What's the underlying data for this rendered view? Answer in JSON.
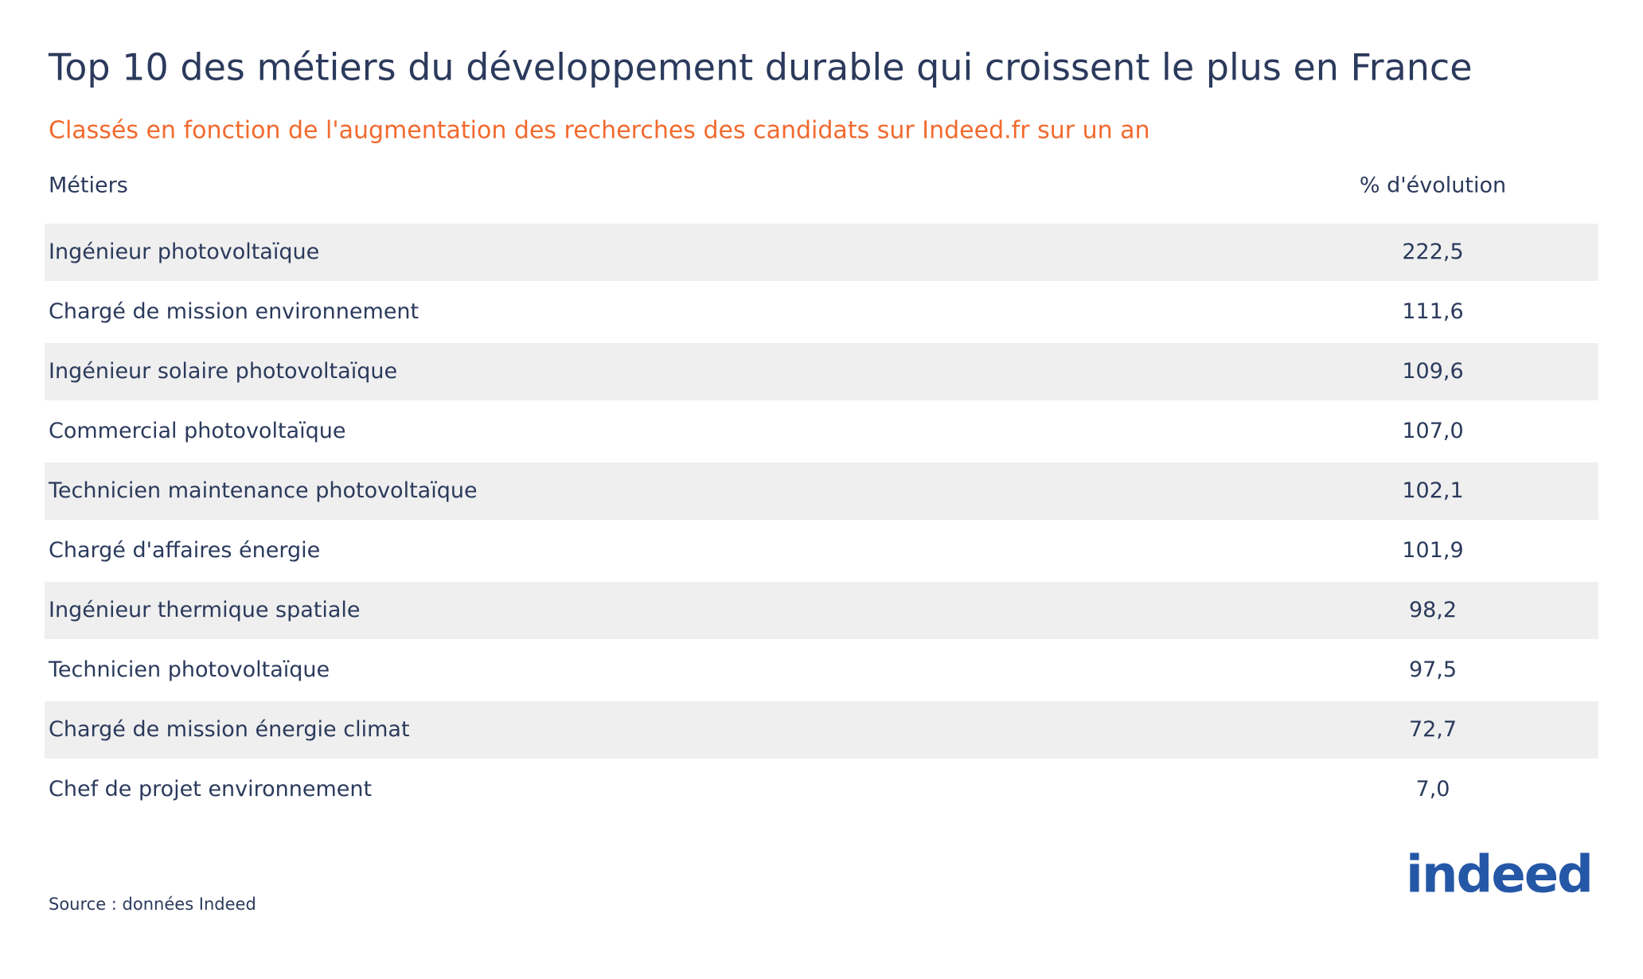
{
  "header": {
    "title": "Top 10 des métiers du développement durable qui croissent le plus en France",
    "subtitle": "Classés en fonction de l'augmentation des recherches des candidats sur Indeed.fr sur un an"
  },
  "table": {
    "columns": [
      "Métiers",
      "% d'évolution"
    ],
    "rows": [
      [
        "Ingénieur photovoltaïque",
        "222,5"
      ],
      [
        "Chargé de mission environnement",
        "111,6"
      ],
      [
        "Ingénieur solaire photovoltaïque",
        "109,6"
      ],
      [
        "Commercial photovoltaïque",
        "107,0"
      ],
      [
        "Technicien maintenance photovoltaïque",
        "102,1"
      ],
      [
        "Chargé d'affaires énergie",
        "101,9"
      ],
      [
        "Ingénieur thermique spatiale",
        "98,2"
      ],
      [
        "Technicien photovoltaïque",
        "97,5"
      ],
      [
        "Chargé de mission énergie climat",
        "72,7"
      ],
      [
        "Chef de projet environnement",
        "7,0"
      ]
    ]
  },
  "footer": {
    "source": "Source : données Indeed",
    "logo": "indeed"
  }
}
